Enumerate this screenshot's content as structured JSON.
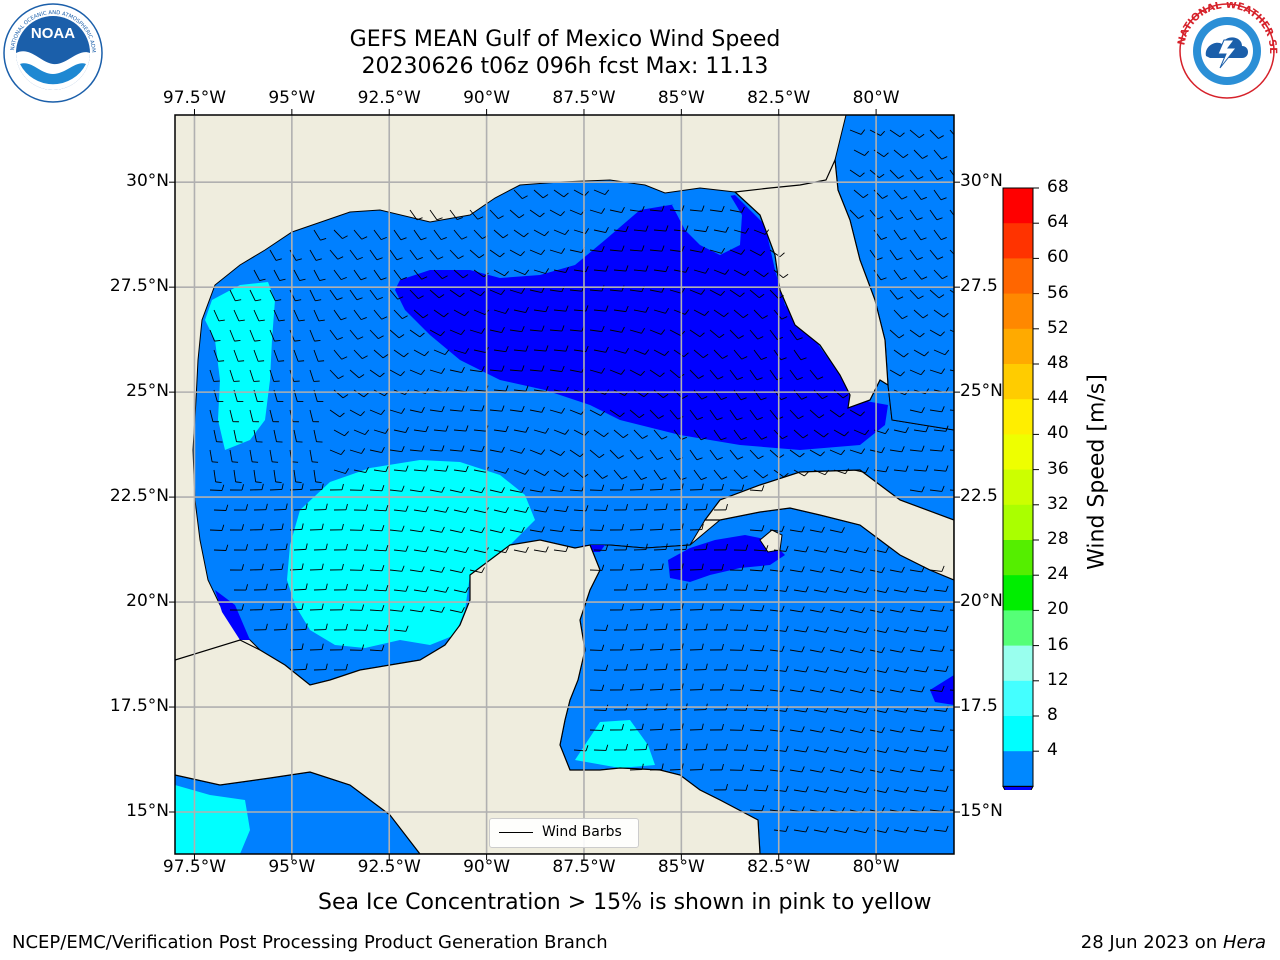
{
  "header": {
    "title_line1": "GEFS MEAN Gulf of Mexico Wind Speed",
    "title_line2": "20230626 t06z 096h fcst   Max: 11.13"
  },
  "logos": {
    "left": {
      "text": "NOAA",
      "ring_text": "NATIONAL OCEANIC AND ATMOSPHERIC ADMINISTRATION · U.S. DEPARTMENT OF COMMERCE",
      "color": "#1b5faa"
    },
    "right": {
      "ring_text": "NATIONAL WEATHER SERVICE",
      "color": "#d6212a"
    }
  },
  "map": {
    "lon_ticks": [
      "97.5°W",
      "95°W",
      "92.5°W",
      "90°W",
      "87.5°W",
      "85°W",
      "82.5°W",
      "80°W"
    ],
    "lat_ticks": [
      "30°N",
      "27.5°N",
      "25°N",
      "22.5°N",
      "20°N",
      "17.5°N",
      "15°N"
    ],
    "lat_ticks_right": [
      "30°N",
      "27.5",
      "25°N",
      "22.5",
      "20°N",
      "17.5",
      "15°N"
    ],
    "lon_range": [
      -98,
      -78
    ],
    "lat_range": [
      14,
      31.6
    ],
    "land_color": "#efedde",
    "grid": true,
    "legend": {
      "label": "Wind Barbs",
      "placement": "lower center"
    }
  },
  "colorbar": {
    "label": "Wind Speed [m/s]",
    "ticks": [
      "68",
      "64",
      "60",
      "56",
      "52",
      "48",
      "44",
      "40",
      "36",
      "32",
      "28",
      "24",
      "20",
      "16",
      "12",
      "8",
      "4"
    ],
    "colors_top_to_bottom": [
      "#ff0000",
      "#ff3300",
      "#ff6600",
      "#ff8800",
      "#ffaa00",
      "#ffcc00",
      "#ffee00",
      "#eeff00",
      "#ccff00",
      "#aaff00",
      "#55ee00",
      "#00ee00",
      "#55ff77",
      "#99ffee",
      "#44ffff",
      "#00ffff",
      "#0088ff"
    ],
    "under_color": "#0000ff"
  },
  "caption": "Sea Ice Concentration > 15% is shown in pink to yellow",
  "footer": {
    "left": "NCEP/EMC/Verification Post Processing Product Generation Branch",
    "right_prefix": "28 Jun 2023 on ",
    "right_host": "Hera"
  },
  "chart_data": {
    "type": "heatmap",
    "variable": "Wind Speed",
    "unit": "m/s",
    "levels": [
      4,
      8,
      12,
      16,
      20,
      24,
      28,
      32,
      36,
      40,
      44,
      48,
      52,
      56,
      60,
      64,
      68
    ],
    "max": 11.13,
    "regions": [
      {
        "area": "Central-NE Gulf",
        "range": "<4"
      },
      {
        "area": "S Gulf / W Caribbean",
        "range": "<4"
      },
      {
        "area": "Open Gulf & Caribbean",
        "range": "4-8"
      },
      {
        "area": "Bay of Campeche",
        "range": "8-12"
      },
      {
        "area": "W Gulf near Texas/Mexico coast",
        "range": "8-12"
      },
      {
        "area": "Gulf of Honduras",
        "range": "8-12"
      }
    ]
  }
}
